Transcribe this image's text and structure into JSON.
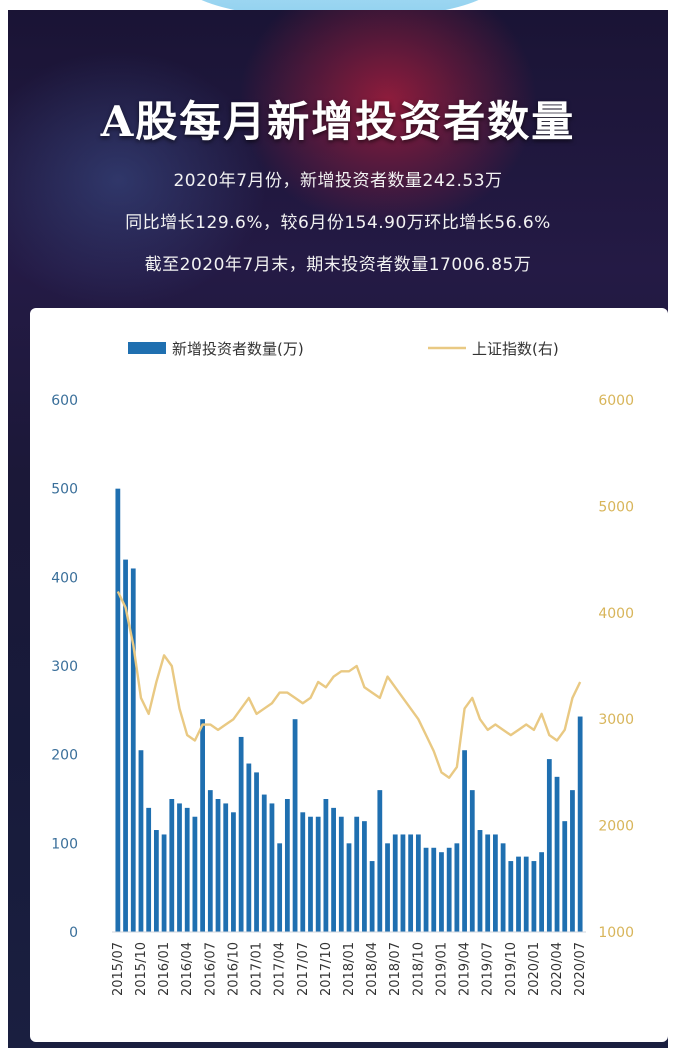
{
  "header": {
    "title": "A股每月新增投资者数量",
    "line1": "2020年7月份，新增投资者数量242.53万",
    "line2": "同比增长129.6%，较6月份154.90万环比增长56.6%",
    "line3": "截至2020年7月末，期末投资者数量17006.85万"
  },
  "colors": {
    "bars": "#1f6fb0",
    "line": "#e9c983",
    "left_axis": "#3a6f9a",
    "right_axis": "#d8b55a"
  },
  "chart_data": {
    "type": "bar",
    "legend": [
      {
        "name": "新增投资者数量(万)",
        "marker": "bar"
      },
      {
        "name": "上证指数(右)",
        "marker": "line"
      }
    ],
    "y_left": {
      "ticks": [
        "0",
        "100",
        "200",
        "300",
        "400",
        "500",
        "600"
      ],
      "ylim": [
        0,
        600
      ]
    },
    "y_right": {
      "ticks": [
        "1000",
        "2000",
        "3000",
        "4000",
        "5000",
        "6000"
      ],
      "ylim": [
        1000,
        6000
      ]
    },
    "x_tick_labels": [
      "2015/07",
      "2015/10",
      "2016/01",
      "2016/04",
      "2016/07",
      "2016/10",
      "2017/01",
      "2017/04",
      "2017/07",
      "2017/10",
      "2018/01",
      "2018/04",
      "2018/07",
      "2018/10",
      "2019/01",
      "2019/04",
      "2019/07",
      "2019/10",
      "2020/01",
      "2020/04",
      "2020/07"
    ],
    "series": [
      {
        "name": "新增投资者数量(万)",
        "type": "bar",
        "axis": "left",
        "values": [
          500,
          420,
          410,
          205,
          140,
          115,
          110,
          150,
          145,
          140,
          130,
          240,
          160,
          150,
          145,
          135,
          220,
          190,
          180,
          155,
          145,
          100,
          150,
          240,
          135,
          130,
          130,
          150,
          140,
          130,
          100,
          130,
          125,
          80,
          160,
          100,
          110,
          110,
          110,
          110,
          95,
          95,
          90,
          95,
          100,
          205,
          160,
          115,
          110,
          110,
          100,
          80,
          85,
          85,
          80,
          90,
          195,
          175,
          125,
          160,
          243
        ]
      },
      {
        "name": "上证指数(右)",
        "type": "line",
        "axis": "right",
        "values": [
          4200,
          4050,
          3700,
          3200,
          3050,
          3350,
          3600,
          3500,
          3100,
          2850,
          2800,
          2950,
          2950,
          2900,
          2950,
          3000,
          3100,
          3200,
          3050,
          3100,
          3150,
          3250,
          3250,
          3200,
          3150,
          3200,
          3350,
          3300,
          3400,
          3450,
          3450,
          3500,
          3300,
          3250,
          3200,
          3400,
          3300,
          3200,
          3100,
          3000,
          2850,
          2700,
          2500,
          2450,
          2550,
          3100,
          3200,
          3000,
          2900,
          2950,
          2900,
          2850,
          2900,
          2950,
          2900,
          3050,
          2850,
          2800,
          2900,
          3200,
          3350
        ]
      }
    ]
  }
}
